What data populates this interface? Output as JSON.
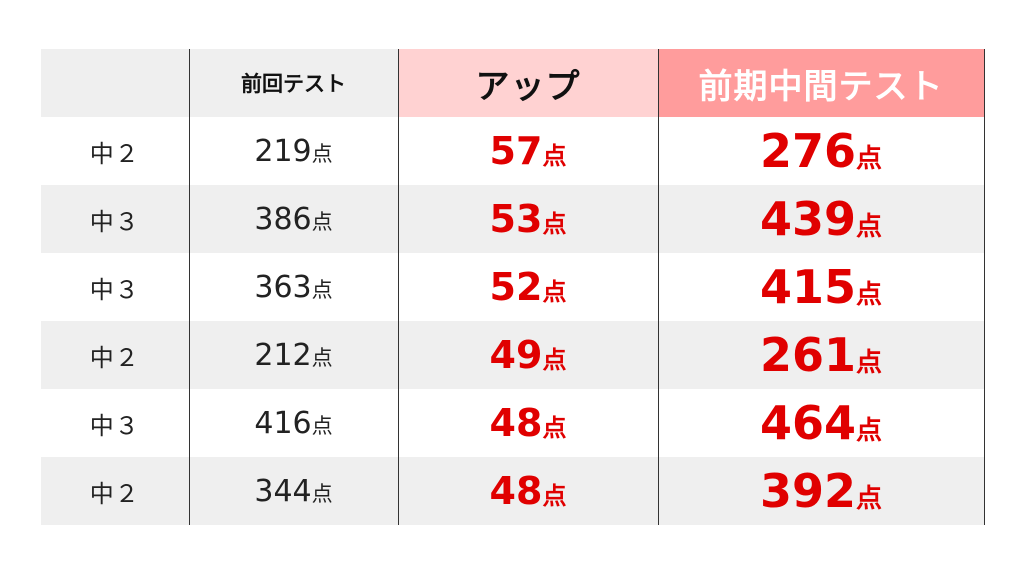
{
  "table": {
    "headers": {
      "grade": "",
      "previous_test": "前回テスト",
      "increase": "アップ",
      "midterm_test": "前期中間テスト"
    },
    "unit": "点",
    "rows": [
      {
        "grade": "中２",
        "previous": "219",
        "increase": "57",
        "midterm": "276"
      },
      {
        "grade": "中３",
        "previous": "386",
        "increase": "53",
        "midterm": "439"
      },
      {
        "grade": "中３",
        "previous": "363",
        "increase": "52",
        "midterm": "415"
      },
      {
        "grade": "中２",
        "previous": "212",
        "increase": "49",
        "midterm": "261"
      },
      {
        "grade": "中３",
        "previous": "416",
        "increase": "48",
        "midterm": "464"
      },
      {
        "grade": "中２",
        "previous": "344",
        "increase": "48",
        "midterm": "392"
      }
    ]
  },
  "colors": {
    "header_gray": "#efefef",
    "header_increase": "#ffd2d2",
    "header_midterm": "#ff9c9c",
    "row_stripe": "#efefef",
    "highlight_text": "#e00000",
    "divider": "#333333"
  }
}
